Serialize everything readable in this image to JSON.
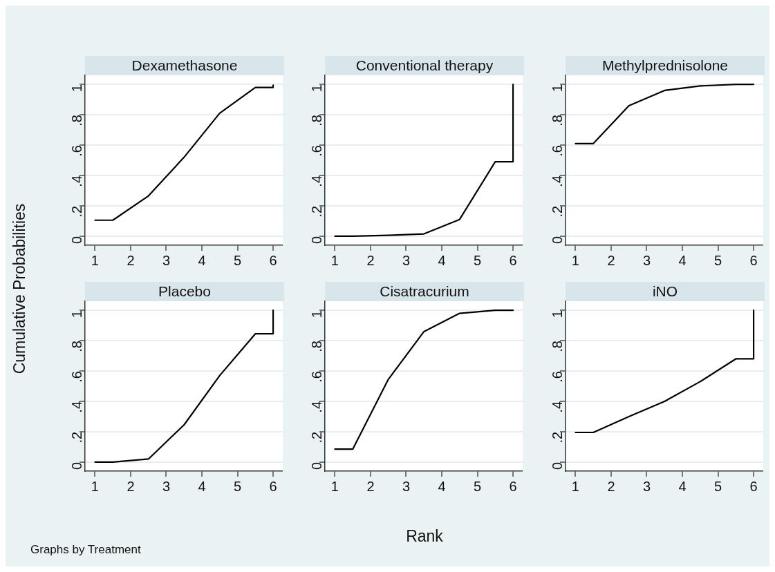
{
  "chart_data": [
    {
      "type": "line",
      "title": "Dexamethasone",
      "ylabel": "Cumulative Probabilities",
      "x": [
        1,
        1.5,
        2.5,
        3.5,
        4.5,
        5.5,
        6,
        6
      ],
      "series": [
        {
          "color": "#000000",
          "values": [
            0.105,
            0.105,
            0.265,
            0.52,
            0.81,
            0.98,
            0.98,
            0.995
          ]
        }
      ],
      "xlim": [
        0.72,
        6.27
      ],
      "xticks": [
        1,
        2,
        3,
        4,
        5,
        6
      ],
      "ylim": [
        -0.06,
        1.06
      ],
      "yticks": [
        {
          "value": 0,
          "label": "0"
        },
        {
          "value": 0.2,
          "label": ".2"
        },
        {
          "value": 0.4,
          "label": ".4"
        },
        {
          "value": 0.6,
          "label": ".6"
        },
        {
          "value": 0.8,
          "label": ".8"
        },
        {
          "value": 1,
          "label": "1"
        }
      ],
      "grid": "y",
      "marker": "none",
      "line_style": "solid"
    },
    {
      "type": "line",
      "title": "Conventional therapy",
      "x": [
        1,
        1.5,
        2.5,
        3.5,
        4.5,
        5.5,
        6,
        6
      ],
      "series": [
        {
          "color": "#000000",
          "values": [
            0,
            0,
            0.005,
            0.015,
            0.11,
            0.49,
            0.49,
            1
          ]
        }
      ],
      "xlim": [
        0.72,
        6.27
      ],
      "xticks": [
        1,
        2,
        3,
        4,
        5,
        6
      ],
      "ylim": [
        -0.06,
        1.06
      ],
      "yticks": [
        {
          "value": 0,
          "label": "0"
        },
        {
          "value": 0.2,
          "label": ".2"
        },
        {
          "value": 0.4,
          "label": ".4"
        },
        {
          "value": 0.6,
          "label": ".6"
        },
        {
          "value": 0.8,
          "label": ".8"
        },
        {
          "value": 1,
          "label": "1"
        }
      ],
      "grid": "y",
      "marker": "none",
      "line_style": "solid"
    },
    {
      "type": "line",
      "title": "Methylprednisolone",
      "x": [
        1,
        1.5,
        2.5,
        3.5,
        4.5,
        5.5,
        6,
        6
      ],
      "series": [
        {
          "color": "#000000",
          "values": [
            0.61,
            0.61,
            0.86,
            0.96,
            0.99,
            1,
            1,
            1
          ]
        }
      ],
      "xlim": [
        0.72,
        6.27
      ],
      "xticks": [
        1,
        2,
        3,
        4,
        5,
        6
      ],
      "ylim": [
        -0.06,
        1.06
      ],
      "yticks": [
        {
          "value": 0,
          "label": "0"
        },
        {
          "value": 0.2,
          "label": ".2"
        },
        {
          "value": 0.4,
          "label": ".4"
        },
        {
          "value": 0.6,
          "label": ".6"
        },
        {
          "value": 0.8,
          "label": ".8"
        },
        {
          "value": 1,
          "label": "1"
        }
      ],
      "grid": "y",
      "marker": "none",
      "line_style": "solid"
    },
    {
      "type": "line",
      "title": "Placebo",
      "annotations": [
        "Graphs by Treatment"
      ],
      "x": [
        1,
        1.5,
        2.5,
        3.5,
        4.5,
        5.5,
        6,
        6
      ],
      "series": [
        {
          "color": "#000000",
          "values": [
            0,
            0,
            0.02,
            0.245,
            0.57,
            0.845,
            0.845,
            1
          ]
        }
      ],
      "xlim": [
        0.72,
        6.27
      ],
      "xticks": [
        1,
        2,
        3,
        4,
        5,
        6
      ],
      "ylim": [
        -0.06,
        1.06
      ],
      "yticks": [
        {
          "value": 0,
          "label": "0"
        },
        {
          "value": 0.2,
          "label": ".2"
        },
        {
          "value": 0.4,
          "label": ".4"
        },
        {
          "value": 0.6,
          "label": ".6"
        },
        {
          "value": 0.8,
          "label": ".8"
        },
        {
          "value": 1,
          "label": "1"
        }
      ],
      "grid": "y",
      "marker": "none",
      "line_style": "solid"
    },
    {
      "type": "line",
      "title": "Cisatracurium",
      "xlabel": "Rank",
      "x": [
        1,
        1.5,
        2.5,
        3.5,
        4.5,
        5.5,
        6,
        6
      ],
      "series": [
        {
          "color": "#000000",
          "values": [
            0.085,
            0.085,
            0.545,
            0.86,
            0.98,
            1,
            1,
            1
          ]
        }
      ],
      "xlim": [
        0.72,
        6.27
      ],
      "xticks": [
        1,
        2,
        3,
        4,
        5,
        6
      ],
      "ylim": [
        -0.06,
        1.06
      ],
      "yticks": [
        {
          "value": 0,
          "label": "0"
        },
        {
          "value": 0.2,
          "label": ".2"
        },
        {
          "value": 0.4,
          "label": ".4"
        },
        {
          "value": 0.6,
          "label": ".6"
        },
        {
          "value": 0.8,
          "label": ".8"
        },
        {
          "value": 1,
          "label": "1"
        }
      ],
      "grid": "y",
      "marker": "none",
      "line_style": "solid"
    },
    {
      "type": "line",
      "title": "iNO",
      "x": [
        1,
        1.5,
        2.5,
        3.5,
        4.5,
        5.5,
        6,
        6
      ],
      "series": [
        {
          "color": "#000000",
          "values": [
            0.195,
            0.195,
            0.3,
            0.4,
            0.53,
            0.68,
            0.68,
            1
          ]
        }
      ],
      "xlim": [
        0.72,
        6.27
      ],
      "xticks": [
        1,
        2,
        3,
        4,
        5,
        6
      ],
      "ylim": [
        -0.06,
        1.06
      ],
      "yticks": [
        {
          "value": 0,
          "label": "0"
        },
        {
          "value": 0.2,
          "label": ".2"
        },
        {
          "value": 0.4,
          "label": ".4"
        },
        {
          "value": 0.6,
          "label": ".6"
        },
        {
          "value": 0.8,
          "label": ".8"
        },
        {
          "value": 1,
          "label": "1"
        }
      ],
      "grid": "y",
      "marker": "none",
      "line_style": "solid"
    }
  ]
}
